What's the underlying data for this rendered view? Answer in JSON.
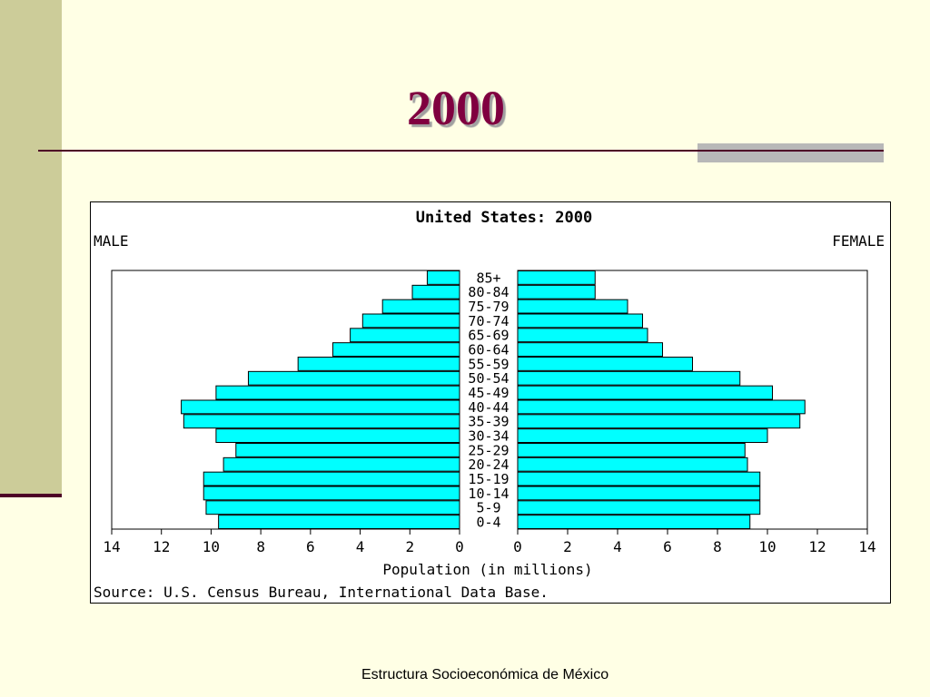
{
  "slide": {
    "title": "2000",
    "footer": "Estructura Socioeconómica de México"
  },
  "chart_data": {
    "type": "bar",
    "title": "United States: 2000",
    "left_label": "MALE",
    "right_label": "FEMALE",
    "xlabel": "Population (in millions)",
    "source": "Source: U.S. Census Bureau, International Data Base.",
    "bar_color": "#00ffff",
    "grid": false,
    "xlim": [
      0,
      14
    ],
    "x_ticks": [
      "14",
      "12",
      "10",
      "8",
      "6",
      "4",
      "2",
      "0",
      "0",
      "2",
      "4",
      "6",
      "8",
      "10",
      "12",
      "14"
    ],
    "categories": [
      "85+",
      "80-84",
      "75-79",
      "70-74",
      "65-69",
      "60-64",
      "55-59",
      "50-54",
      "45-49",
      "40-44",
      "35-39",
      "30-34",
      "25-29",
      "20-24",
      "15-19",
      "10-14",
      "5-9",
      "0-4"
    ],
    "series": [
      {
        "name": "MALE",
        "values": [
          1.3,
          1.9,
          3.1,
          3.9,
          4.4,
          5.1,
          6.5,
          8.5,
          9.8,
          11.2,
          11.1,
          9.8,
          9.0,
          9.5,
          10.3,
          10.3,
          10.2,
          9.7
        ]
      },
      {
        "name": "FEMALE",
        "values": [
          3.1,
          3.1,
          4.4,
          5.0,
          5.2,
          5.8,
          7.0,
          8.9,
          10.2,
          11.5,
          11.3,
          10.0,
          9.1,
          9.2,
          9.7,
          9.7,
          9.7,
          9.3
        ]
      }
    ]
  }
}
